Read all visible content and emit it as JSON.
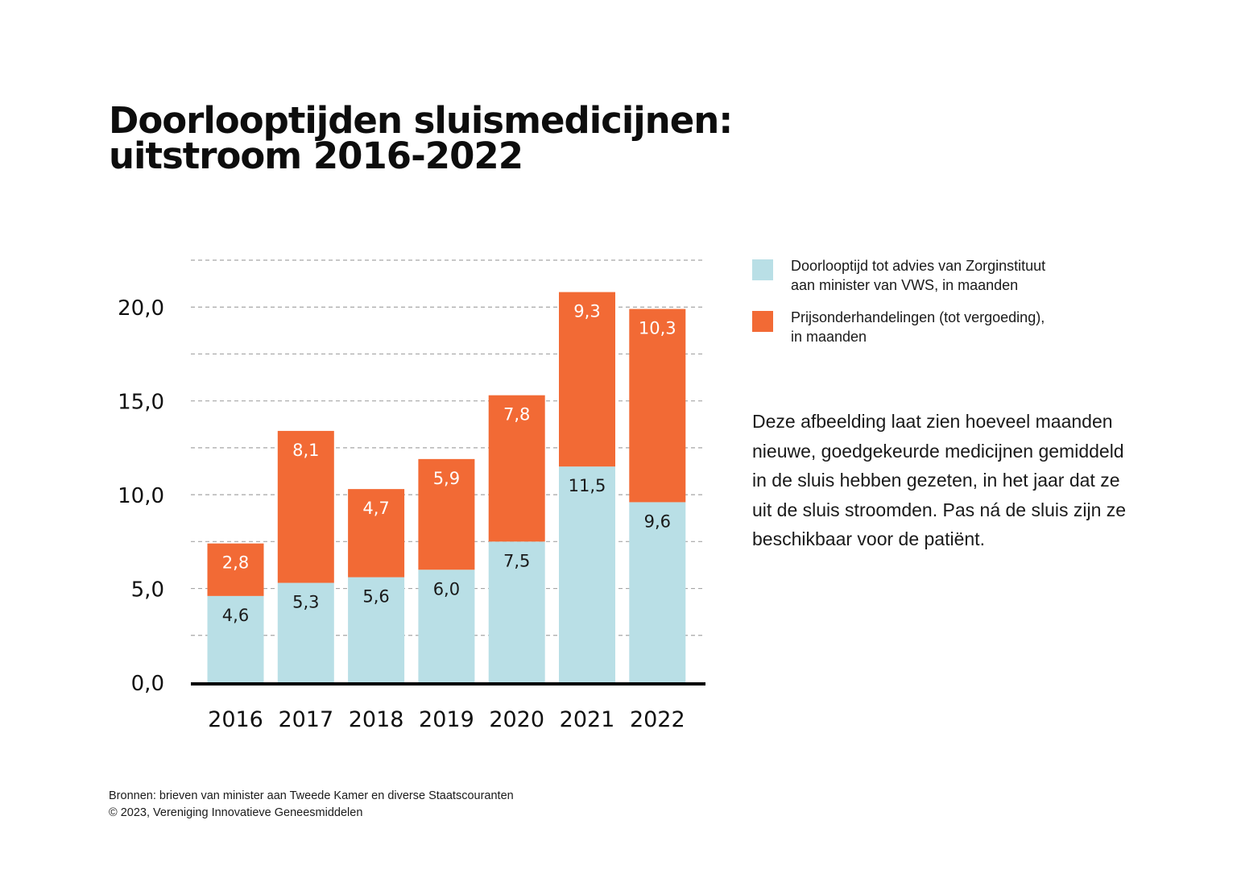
{
  "title_lines": [
    "Doorlooptijden sluismedicijnen:",
    "uitstroom 2016-2022"
  ],
  "legend": [
    {
      "lines": [
        "Doorlooptijd tot advies van Zorginstituut",
        "aan minister van VWS, in maanden"
      ],
      "color": "#b9dfe6"
    },
    {
      "lines": [
        "Prijsonderhandelingen (tot vergoeding),",
        "in maanden"
      ],
      "color": "#f26a35"
    }
  ],
  "description_lines": [
    "Deze afbeelding laat zien hoeveel maanden",
    "nieuwe, goedgekeurde medicijnen gemiddeld",
    "in de sluis hebben gezeten, in het jaar dat ze",
    "uit de sluis stroomden. Pas ná de sluis zijn ze",
    "beschikbaar voor de patiënt."
  ],
  "source_lines": [
    "Bronnen: brieven van minister aan Tweede Kamer en diverse Staatscouranten",
    "© 2023, Vereniging Innovatieve Geneesmiddelen"
  ],
  "chart_data": {
    "type": "bar",
    "stacked": true,
    "categories": [
      "2016",
      "2017",
      "2018",
      "2019",
      "2020",
      "2021",
      "2022"
    ],
    "series": [
      {
        "name": "Doorlooptijd tot advies van Zorginstituut aan minister van VWS, in maanden",
        "values": [
          4.6,
          5.3,
          5.6,
          6.0,
          7.5,
          11.5,
          9.6
        ],
        "labels": [
          "4,6",
          "5,3",
          "5,6",
          "6,0",
          "7,5",
          "11,5",
          "9,6"
        ],
        "color": "#b9dfe6",
        "label_color": "#1a1a1a"
      },
      {
        "name": "Prijsonderhandelingen (tot vergoeding), in maanden",
        "values": [
          2.8,
          8.1,
          4.7,
          5.9,
          7.8,
          9.3,
          10.3
        ],
        "labels": [
          "2,8",
          "8,1",
          "4,7",
          "5,9",
          "7,8",
          "9,3",
          "10,3"
        ],
        "color": "#f26a35",
        "label_color": "#ffffff"
      }
    ],
    "ylim": [
      0,
      22.5
    ],
    "y_ticks": [
      0,
      5,
      10,
      15,
      20
    ],
    "y_tick_labels": [
      "0,0",
      "5,0",
      "10,0",
      "15,0",
      "20,0"
    ],
    "gridlines": [
      2.5,
      5,
      7.5,
      10,
      12.5,
      15,
      17.5,
      20,
      22.5
    ],
    "grid": true,
    "legend_position": "right",
    "xlabel": "",
    "ylabel": ""
  }
}
